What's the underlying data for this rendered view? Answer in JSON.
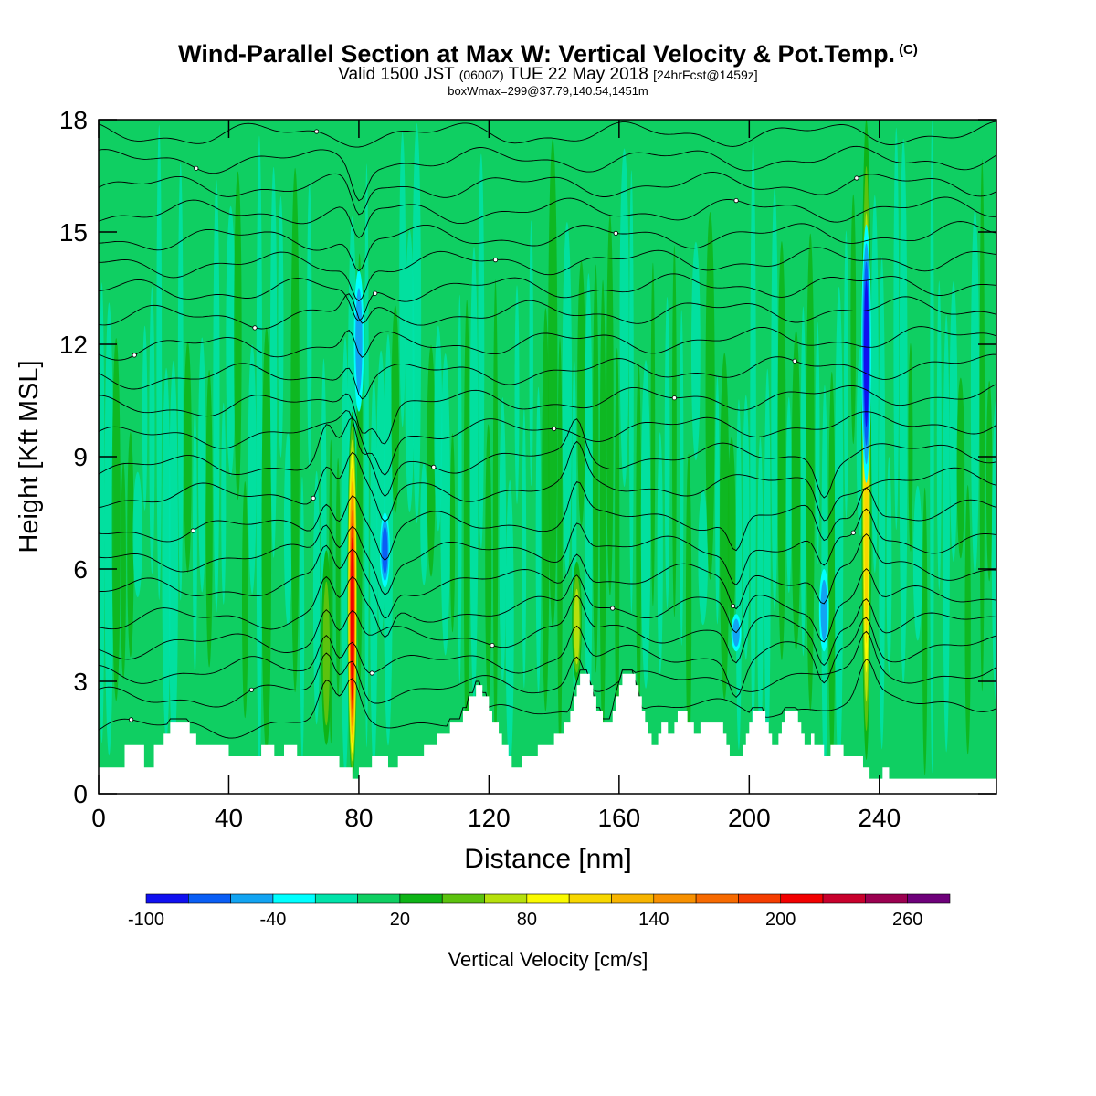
{
  "header": {
    "title": "Wind-Parallel Section at Max W: Vertical Velocity & Pot.Temp.",
    "copyright": "(C)",
    "valid_prefix": "Valid 1500 JST",
    "valid_zulu": "(0600Z)",
    "valid_date": "TUE 22 May 2018",
    "forecast_info": "[24hrFcst@1459z]",
    "box_info": "boxWmax=299@37.79,140.54,1451m"
  },
  "chart_data": {
    "type": "heatmap",
    "xlabel": "Distance [nm]",
    "ylabel": "Height [Kft MSL]",
    "xlim": [
      0,
      276
    ],
    "ylim": [
      0,
      18
    ],
    "x_ticks": [
      0,
      40,
      80,
      120,
      160,
      200,
      240
    ],
    "y_ticks": [
      0,
      3,
      6,
      9,
      12,
      15,
      18
    ],
    "colorbar": {
      "label": "Vertical Velocity [cm/s]",
      "levels": [
        -100,
        -80,
        -60,
        -40,
        -20,
        0,
        20,
        40,
        60,
        80,
        100,
        120,
        140,
        160,
        180,
        200,
        220,
        240,
        260,
        280
      ],
      "tick_labels": [
        "-100",
        "-40",
        "20",
        "80",
        "140",
        "200",
        "260"
      ],
      "colors": [
        "#1010f0",
        "#0a5ef5",
        "#12a4f2",
        "#00ffff",
        "#00e3aa",
        "#0fcf62",
        "#0eb417",
        "#5cc20e",
        "#b6e00c",
        "#fafa00",
        "#f7d700",
        "#f7b400",
        "#f79000",
        "#f76a00",
        "#f53d00",
        "#f20000",
        "#c8002c",
        "#9b0050",
        "#6e007a"
      ]
    },
    "updraft_columns": [
      {
        "x": 78,
        "bottom": 0.4,
        "top": 10.2,
        "peak": 220
      },
      {
        "x": 236,
        "bottom": 0.9,
        "top": 18.0,
        "peak": 110
      },
      {
        "x": 147,
        "bottom": 3.0,
        "top": 6.2,
        "peak": 70
      },
      {
        "x": 70,
        "bottom": 1.3,
        "top": 6.5,
        "peak": 60
      }
    ],
    "downdraft_columns": [
      {
        "x": 236,
        "bottom": 8.3,
        "top": 15.2,
        "peak": -100
      },
      {
        "x": 80,
        "bottom": 10.2,
        "top": 14.0,
        "peak": -60
      },
      {
        "x": 88,
        "bottom": 5.5,
        "top": 7.5,
        "peak": -70
      },
      {
        "x": 223,
        "bottom": 3.8,
        "top": 6.0,
        "peak": -50
      },
      {
        "x": 196,
        "bottom": 3.8,
        "top": 4.8,
        "peak": -45
      }
    ],
    "terrain": [
      [
        0,
        0.7
      ],
      [
        8,
        0.7
      ],
      [
        8,
        1.3
      ],
      [
        14,
        1.3
      ],
      [
        14,
        0.7
      ],
      [
        17,
        0.7
      ],
      [
        17,
        1.3
      ],
      [
        20,
        1.3
      ],
      [
        20,
        1.6
      ],
      [
        22,
        1.6
      ],
      [
        22,
        1.9
      ],
      [
        28,
        1.9
      ],
      [
        28,
        1.6
      ],
      [
        30,
        1.6
      ],
      [
        30,
        1.3
      ],
      [
        40,
        1.3
      ],
      [
        40,
        1.0
      ],
      [
        50,
        1.0
      ],
      [
        50,
        1.3
      ],
      [
        54,
        1.3
      ],
      [
        54,
        1.0
      ],
      [
        57,
        1.0
      ],
      [
        57,
        1.3
      ],
      [
        61,
        1.3
      ],
      [
        61,
        1.0
      ],
      [
        74,
        1.0
      ],
      [
        74,
        0.7
      ],
      [
        78,
        0.7
      ],
      [
        78,
        0.4
      ],
      [
        80,
        0.4
      ],
      [
        80,
        0.7
      ],
      [
        84,
        0.7
      ],
      [
        84,
        1.0
      ],
      [
        89,
        1.0
      ],
      [
        89,
        0.7
      ],
      [
        92,
        0.7
      ],
      [
        92,
        1.0
      ],
      [
        100,
        1.0
      ],
      [
        100,
        1.3
      ],
      [
        104,
        1.3
      ],
      [
        104,
        1.6
      ],
      [
        108,
        1.6
      ],
      [
        108,
        1.9
      ],
      [
        112,
        1.9
      ],
      [
        112,
        2.2
      ],
      [
        114,
        2.2
      ],
      [
        114,
        2.6
      ],
      [
        116,
        2.6
      ],
      [
        116,
        2.9
      ],
      [
        118,
        2.9
      ],
      [
        118,
        2.6
      ],
      [
        120,
        2.6
      ],
      [
        120,
        2.2
      ],
      [
        121,
        2.2
      ],
      [
        121,
        1.9
      ],
      [
        123,
        1.9
      ],
      [
        123,
        1.6
      ],
      [
        124,
        1.6
      ],
      [
        124,
        1.3
      ],
      [
        126,
        1.3
      ],
      [
        126,
        1.0
      ],
      [
        127,
        1.0
      ],
      [
        127,
        0.7
      ],
      [
        130,
        0.7
      ],
      [
        130,
        1.0
      ],
      [
        135,
        1.0
      ],
      [
        135,
        1.3
      ],
      [
        140,
        1.3
      ],
      [
        140,
        1.6
      ],
      [
        143,
        1.6
      ],
      [
        143,
        1.9
      ],
      [
        145,
        1.9
      ],
      [
        145,
        2.2
      ],
      [
        146,
        2.2
      ],
      [
        146,
        2.6
      ],
      [
        147,
        2.6
      ],
      [
        147,
        2.9
      ],
      [
        148,
        2.9
      ],
      [
        148,
        3.2
      ],
      [
        151,
        3.2
      ],
      [
        151,
        2.9
      ],
      [
        152,
        2.9
      ],
      [
        152,
        2.6
      ],
      [
        153,
        2.6
      ],
      [
        153,
        2.2
      ],
      [
        155,
        2.2
      ],
      [
        155,
        1.9
      ],
      [
        158,
        1.9
      ],
      [
        158,
        2.2
      ],
      [
        159,
        2.2
      ],
      [
        159,
        2.6
      ],
      [
        160,
        2.6
      ],
      [
        160,
        2.9
      ],
      [
        161,
        2.9
      ],
      [
        161,
        3.2
      ],
      [
        165,
        3.2
      ],
      [
        165,
        2.9
      ],
      [
        166,
        2.9
      ],
      [
        166,
        2.6
      ],
      [
        167,
        2.6
      ],
      [
        167,
        2.2
      ],
      [
        168,
        2.2
      ],
      [
        168,
        1.9
      ],
      [
        169,
        1.9
      ],
      [
        169,
        1.6
      ],
      [
        170,
        1.6
      ],
      [
        170,
        1.3
      ],
      [
        172,
        1.3
      ],
      [
        172,
        1.6
      ],
      [
        173,
        1.6
      ],
      [
        173,
        1.9
      ],
      [
        175,
        1.9
      ],
      [
        175,
        1.6
      ],
      [
        177,
        1.6
      ],
      [
        177,
        1.9
      ],
      [
        178,
        1.9
      ],
      [
        178,
        2.2
      ],
      [
        181,
        2.2
      ],
      [
        181,
        1.9
      ],
      [
        183,
        1.9
      ],
      [
        183,
        1.6
      ],
      [
        185,
        1.6
      ],
      [
        185,
        1.9
      ],
      [
        192,
        1.9
      ],
      [
        192,
        1.6
      ],
      [
        193,
        1.6
      ],
      [
        193,
        1.3
      ],
      [
        194,
        1.3
      ],
      [
        194,
        1.0
      ],
      [
        198,
        1.0
      ],
      [
        198,
        1.3
      ],
      [
        199,
        1.3
      ],
      [
        199,
        1.6
      ],
      [
        200,
        1.6
      ],
      [
        200,
        1.9
      ],
      [
        201,
        1.9
      ],
      [
        201,
        2.2
      ],
      [
        205,
        2.2
      ],
      [
        205,
        1.9
      ],
      [
        206,
        1.9
      ],
      [
        206,
        1.6
      ],
      [
        207,
        1.6
      ],
      [
        207,
        1.3
      ],
      [
        209,
        1.3
      ],
      [
        209,
        1.6
      ],
      [
        210,
        1.6
      ],
      [
        210,
        1.9
      ],
      [
        211,
        1.9
      ],
      [
        211,
        2.2
      ],
      [
        215,
        2.2
      ],
      [
        215,
        1.9
      ],
      [
        216,
        1.9
      ],
      [
        216,
        1.6
      ],
      [
        217,
        1.6
      ],
      [
        217,
        1.3
      ],
      [
        219,
        1.3
      ],
      [
        219,
        1.6
      ],
      [
        220,
        1.6
      ],
      [
        220,
        1.3
      ],
      [
        223,
        1.3
      ],
      [
        223,
        1.0
      ],
      [
        225,
        1.0
      ],
      [
        225,
        1.3
      ],
      [
        229,
        1.3
      ],
      [
        229,
        1.0
      ],
      [
        235,
        1.0
      ],
      [
        235,
        0.7
      ],
      [
        237,
        0.7
      ],
      [
        237,
        0.4
      ],
      [
        241,
        0.4
      ],
      [
        241,
        0.7
      ],
      [
        243,
        0.7
      ],
      [
        243,
        0.4
      ],
      [
        276,
        0.4
      ]
    ],
    "isentrope_base_heights": [
      1.7,
      2.5,
      3.2,
      3.9,
      4.6,
      5.4,
      6.2,
      7.0,
      7.9,
      8.7,
      9.5,
      10.3,
      11.1,
      11.9,
      12.7,
      13.4,
      14.1,
      14.8,
      15.5,
      16.2,
      16.9,
      17.6
    ]
  }
}
